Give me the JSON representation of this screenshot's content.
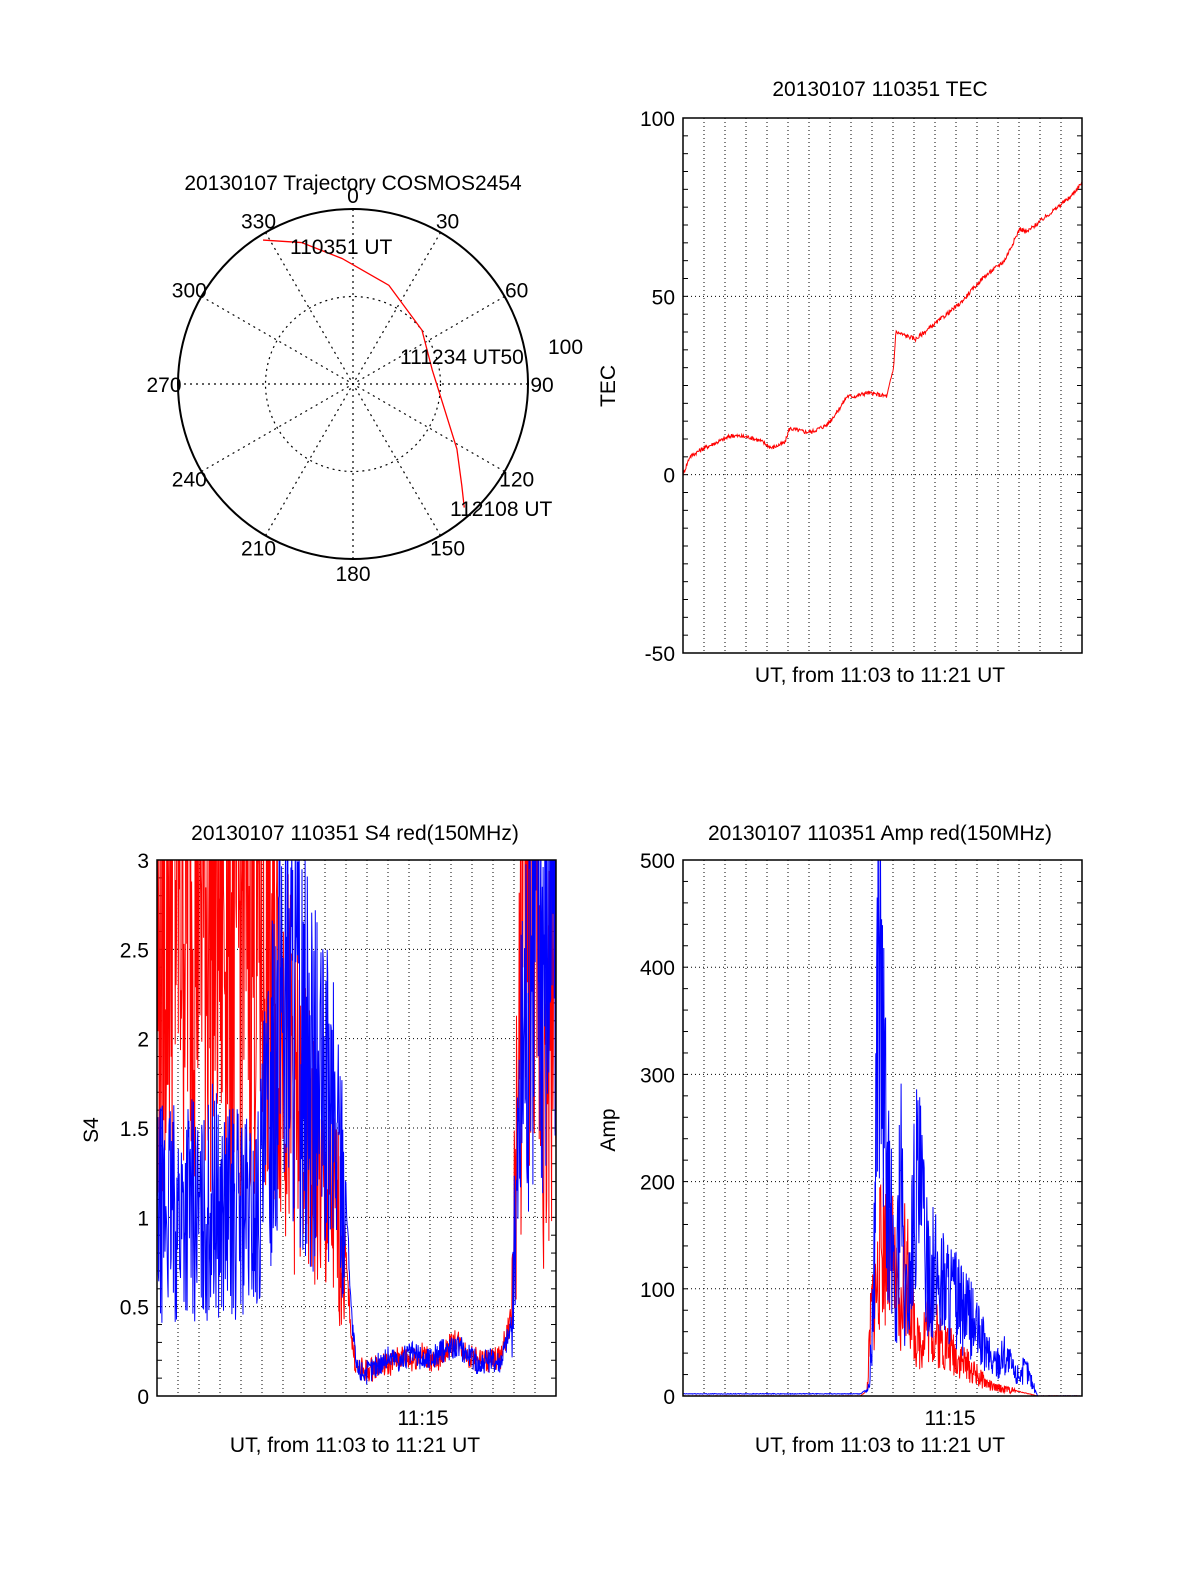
{
  "colors": {
    "red": "#ff0000",
    "blue": "#0000ff",
    "axis": "#000000",
    "grid": "#000000"
  },
  "chart_data": [
    {
      "type": "polar",
      "title": "20130107 Trajectory COSMOS2454",
      "angle_labels": [
        "0",
        "30",
        "60",
        "90",
        "120",
        "150",
        "180",
        "210",
        "240",
        "270",
        "300",
        "330"
      ],
      "radius_labels": [
        "50",
        "100"
      ],
      "grid": true,
      "series": [
        {
          "color": "red",
          "points": [
            {
              "az": 328,
              "r": 97
            },
            {
              "az": 340,
              "r": 86
            },
            {
              "az": 355,
              "r": 72
            },
            {
              "az": 20,
              "r": 60
            },
            {
              "az": 52,
              "r": 50
            },
            {
              "az": 80,
              "r": 46
            },
            {
              "az": 105,
              "r": 54
            },
            {
              "az": 122,
              "r": 70
            },
            {
              "az": 133,
              "r": 85
            },
            {
              "az": 138,
              "r": 95
            }
          ]
        }
      ],
      "annotations": [
        "110351 UT",
        "111234 UT",
        "112108 UT"
      ]
    },
    {
      "type": "line",
      "title": "20130107 110351 TEC",
      "xlabel": "UT, from 11:03 to 11:21 UT",
      "ylabel": "TEC",
      "ylim": [
        -50,
        100
      ],
      "yticks": [
        "-50",
        "0",
        "50",
        "100"
      ],
      "xlim": [
        0,
        18
      ],
      "grid": true,
      "series": [
        {
          "color": "red",
          "x": [
            0,
            0.3,
            0.8,
            1.5,
            2.2,
            3.0,
            3.5,
            4.0,
            4.6,
            4.8,
            5.5,
            5.8,
            6.5,
            7.0,
            7.4,
            7.8,
            8.3,
            9.2,
            9.5,
            9.6,
            10.5,
            11.5,
            12.5,
            13.5,
            14.5,
            15.2,
            15.5,
            16.5,
            17.5,
            18
          ],
          "y": [
            0,
            5,
            7,
            9,
            11,
            10.5,
            9.5,
            7.5,
            9,
            13,
            12,
            12,
            14,
            18,
            22,
            22,
            23,
            22,
            30,
            40,
            38,
            43,
            48,
            55,
            60,
            69,
            68,
            73,
            78,
            82
          ]
        }
      ]
    },
    {
      "type": "line",
      "title": "20130107 110351 S4 red(150MHz)",
      "xlabel": "UT, from 11:03 to 11:21 UT",
      "ylabel": "S4",
      "ylim": [
        0,
        3
      ],
      "yticks": [
        "0",
        "0.5",
        "1",
        "1.5",
        "2",
        "2.5",
        "3"
      ],
      "xticks": [
        "11:15"
      ],
      "xlim": [
        0,
        18
      ],
      "grid": true,
      "series": [
        {
          "color": "red",
          "x": [
            0,
            0.5,
            1,
            1.5,
            2,
            2.5,
            3,
            3.5,
            4,
            4.5,
            5,
            5.5,
            6,
            6.5,
            7,
            7.5,
            8,
            8.5,
            8.8,
            9,
            9.5,
            10,
            10.5,
            11,
            11.5,
            12,
            12.5,
            13,
            13.5,
            14,
            14.5,
            15,
            15.5,
            16,
            16.5,
            17,
            17.5,
            18
          ],
          "y": [
            2.3,
            2.8,
            2.9,
            2.85,
            2.9,
            2.7,
            2.8,
            2.6,
            2.8,
            2.6,
            2.5,
            2.4,
            1.8,
            1.5,
            1.35,
            1.1,
            1.05,
            0.8,
            0.3,
            0.15,
            0.14,
            0.17,
            0.18,
            0.22,
            0.2,
            0.24,
            0.18,
            0.25,
            0.32,
            0.23,
            0.2,
            0.2,
            0.22,
            0.45,
            2.6,
            2.9,
            1.6,
            2.6
          ]
        },
        {
          "color": "blue",
          "x": [
            0,
            0.5,
            1,
            1.5,
            2,
            2.5,
            3,
            3.5,
            4,
            4.5,
            5,
            5.5,
            6,
            6.5,
            7,
            7.5,
            8,
            8.5,
            8.8,
            9,
            9.5,
            10,
            10.5,
            11,
            11.5,
            12,
            12.5,
            13,
            13.5,
            14,
            14.5,
            15,
            15.5,
            16,
            16.5,
            17,
            17.5,
            18
          ],
          "y": [
            1.0,
            1.05,
            1.0,
            1.1,
            0.95,
            1.1,
            1.0,
            1.05,
            1.0,
            0.98,
            1.5,
            2.4,
            2.2,
            2.0,
            1.75,
            1.6,
            1.5,
            1.2,
            0.4,
            0.15,
            0.13,
            0.18,
            0.22,
            0.2,
            0.24,
            0.2,
            0.22,
            0.26,
            0.28,
            0.24,
            0.18,
            0.2,
            0.2,
            0.4,
            2.0,
            2.9,
            2.7,
            2.9
          ]
        }
      ]
    },
    {
      "type": "line",
      "title": "20130107 110351 Amp red(150MHz)",
      "xlabel": "UT, from 11:03 to 11:21 UT",
      "ylabel": "Amp",
      "ylim": [
        0,
        500
      ],
      "yticks": [
        "0",
        "100",
        "200",
        "300",
        "400",
        "500"
      ],
      "xticks": [
        "11:15"
      ],
      "xlim": [
        0,
        18
      ],
      "grid": true,
      "series": [
        {
          "color": "red",
          "x": [
            0,
            8.0,
            8.3,
            8.5,
            8.8,
            9.0,
            9.3,
            9.5,
            9.8,
            10.0,
            10.3,
            10.6,
            11.0,
            11.5,
            12.0,
            12.5,
            13.0,
            13.5,
            14.0,
            15.0,
            16.0,
            18
          ],
          "y": [
            0,
            0,
            5,
            80,
            110,
            150,
            130,
            120,
            60,
            130,
            80,
            45,
            70,
            55,
            45,
            35,
            25,
            15,
            8,
            5,
            0,
            0
          ]
        },
        {
          "color": "blue",
          "x": [
            0,
            8.0,
            8.4,
            8.6,
            8.8,
            9.0,
            9.2,
            9.4,
            9.6,
            9.8,
            10.0,
            10.2,
            10.5,
            10.8,
            11.0,
            11.5,
            12.0,
            12.5,
            13.0,
            13.5,
            14.0,
            14.5,
            15.0,
            15.5,
            16.0,
            18
          ],
          "y": [
            2,
            2,
            8,
            90,
            440,
            320,
            200,
            150,
            60,
            230,
            80,
            100,
            200,
            170,
            120,
            110,
            100,
            80,
            70,
            50,
            30,
            40,
            20,
            25,
            0,
            0
          ]
        }
      ]
    }
  ]
}
